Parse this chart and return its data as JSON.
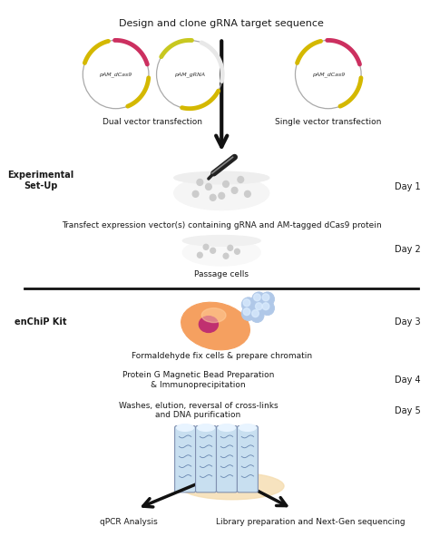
{
  "title": "Design and clone gRNA target sequence",
  "background_color": "#ffffff",
  "text_color": "#1a1a1a",
  "label_experimental": "Experimental\nSet-Up",
  "label_enchip": "enChiP Kit",
  "day1": "Day 1",
  "day2": "Day 2",
  "day3": "Day 3",
  "day4": "Day 4",
  "day5": "Day 5",
  "dual_label": "Dual vector transfection",
  "single_label": "Single vector transfection",
  "transfect_text": "Transfect expression vector(s) containing gRNA and AM-tagged dCas9 protein",
  "passage_text": "Passage cells",
  "formaldehyde_text": "Formaldehyde fix cells & prepare chromatin",
  "protein_g_text": "Protein G Magnetic Bead Preparation\n& Immunoprecipitation",
  "washes_text": "Washes, elution, reversal of cross-links\nand DNA purification",
  "qpcr_text": "qPCR Analysis",
  "library_text": "Library preparation and Next-Gen sequencing",
  "arrow_color": "#111111"
}
